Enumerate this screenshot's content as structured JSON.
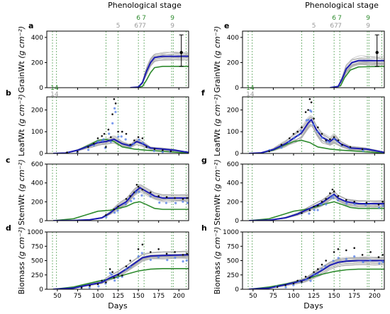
{
  "colors": {
    "sim_ensemble": "#a9a9a9",
    "sim_mean": "#1c1cb4",
    "obs_assim": "#4f7be8",
    "obs": "#111111",
    "baseline": "#2e8b2e",
    "stage_line": "#2e8b2e",
    "stage_line_grey": "#9a9a9a",
    "spine": "#000000"
  },
  "headers": {
    "left": "Phenological stage",
    "right": "Phenological stage"
  },
  "stage_markers": {
    "green_top": [
      {
        "label": "6",
        "x": 150
      },
      {
        "label": "7",
        "x": 157
      },
      {
        "label": "9",
        "x": 192
      }
    ],
    "grey_top": [
      {
        "label": "5",
        "x": 125
      },
      {
        "label": "67",
        "x": 150
      },
      {
        "label": "7",
        "x": 157
      },
      {
        "label": "9",
        "x": 192
      }
    ],
    "green_early": [
      {
        "label": "1",
        "x": 44
      },
      {
        "label": "4",
        "x": 49
      }
    ],
    "grey_early": [
      {
        "label": "1",
        "x": 44
      },
      {
        "label": "4",
        "x": 49
      }
    ],
    "vlines": [
      44,
      49,
      110,
      125,
      150,
      157,
      191,
      193,
      209
    ]
  },
  "chart_data": [
    {
      "panel": "a",
      "type": "line",
      "ylabel": "GrainWt",
      "yunit": "(g cm⁻²)",
      "xlim": [
        37,
        212
      ],
      "ylim": [
        0,
        450
      ],
      "yticks": [
        0,
        200,
        400
      ],
      "xticks": [],
      "xlabel": "",
      "mean": [
        [
          140,
          0
        ],
        [
          150,
          5
        ],
        [
          155,
          40
        ],
        [
          160,
          130
        ],
        [
          165,
          200
        ],
        [
          170,
          240
        ],
        [
          180,
          250
        ],
        [
          212,
          250
        ]
      ],
      "baseline": [
        [
          145,
          0
        ],
        [
          155,
          10
        ],
        [
          160,
          60
        ],
        [
          165,
          120
        ],
        [
          170,
          160
        ],
        [
          180,
          170
        ],
        [
          212,
          170
        ]
      ],
      "ensemble_spread": 35,
      "errorbar": {
        "x": 203,
        "y": 280,
        "lo": 170,
        "hi": 420
      },
      "obs": []
    },
    {
      "panel": "b",
      "type": "line",
      "ylabel": "LeafWt",
      "yunit": "(g cm⁻²)",
      "xlim": [
        37,
        212
      ],
      "ylim": [
        0,
        260
      ],
      "yticks": [
        0,
        100,
        200
      ],
      "xticks": [],
      "xlabel": "",
      "mean": [
        [
          45,
          0
        ],
        [
          60,
          2
        ],
        [
          75,
          15
        ],
        [
          90,
          35
        ],
        [
          100,
          50
        ],
        [
          110,
          55
        ],
        [
          120,
          65
        ],
        [
          130,
          45
        ],
        [
          140,
          35
        ],
        [
          148,
          55
        ],
        [
          155,
          45
        ],
        [
          165,
          25
        ],
        [
          180,
          20
        ],
        [
          195,
          15
        ],
        [
          212,
          5
        ]
      ],
      "baseline": [
        [
          45,
          0
        ],
        [
          60,
          2
        ],
        [
          75,
          15
        ],
        [
          90,
          40
        ],
        [
          100,
          60
        ],
        [
          110,
          65
        ],
        [
          120,
          55
        ],
        [
          130,
          30
        ],
        [
          145,
          20
        ],
        [
          160,
          15
        ],
        [
          180,
          10
        ],
        [
          200,
          5
        ],
        [
          212,
          2
        ]
      ],
      "ensemble_spread": 20,
      "obs": [
        [
          62,
          5
        ],
        [
          75,
          8
        ],
        [
          88,
          30
        ],
        [
          95,
          45
        ],
        [
          100,
          70
        ],
        [
          105,
          80
        ],
        [
          108,
          90
        ],
        [
          110,
          30
        ],
        [
          113,
          110
        ],
        [
          116,
          75
        ],
        [
          118,
          180
        ],
        [
          120,
          250
        ],
        [
          122,
          230
        ],
        [
          125,
          100
        ],
        [
          130,
          100
        ],
        [
          135,
          90
        ],
        [
          140,
          40
        ],
        [
          145,
          60
        ],
        [
          150,
          75
        ],
        [
          155,
          70
        ],
        [
          160,
          30
        ],
        [
          170,
          20
        ],
        [
          180,
          15
        ],
        [
          190,
          10
        ]
      ]
    },
    {
      "panel": "c",
      "type": "line",
      "ylabel": "StemWt",
      "yunit": "(g cm⁻²)",
      "xlim": [
        37,
        212
      ],
      "ylim": [
        0,
        600
      ],
      "yticks": [
        0,
        200,
        400,
        600
      ],
      "xticks": [],
      "xlabel": "",
      "mean": [
        [
          45,
          0
        ],
        [
          70,
          2
        ],
        [
          90,
          10
        ],
        [
          105,
          30
        ],
        [
          115,
          80
        ],
        [
          125,
          150
        ],
        [
          135,
          200
        ],
        [
          145,
          300
        ],
        [
          152,
          350
        ],
        [
          160,
          310
        ],
        [
          170,
          260
        ],
        [
          180,
          240
        ],
        [
          212,
          240
        ]
      ],
      "baseline": [
        [
          45,
          0
        ],
        [
          70,
          20
        ],
        [
          85,
          60
        ],
        [
          100,
          100
        ],
        [
          115,
          110
        ],
        [
          125,
          130
        ],
        [
          135,
          150
        ],
        [
          145,
          190
        ],
        [
          152,
          200
        ],
        [
          160,
          170
        ],
        [
          170,
          130
        ],
        [
          180,
          120
        ],
        [
          212,
          120
        ]
      ],
      "ensemble_spread": 40,
      "obs": [
        [
          110,
          60
        ],
        [
          120,
          120
        ],
        [
          125,
          150
        ],
        [
          135,
          230
        ],
        [
          140,
          260
        ],
        [
          145,
          300
        ],
        [
          148,
          380
        ],
        [
          150,
          360
        ],
        [
          155,
          330
        ],
        [
          165,
          300
        ],
        [
          175,
          260
        ],
        [
          185,
          250
        ],
        [
          195,
          240
        ],
        [
          205,
          230
        ],
        [
          210,
          240
        ]
      ]
    },
    {
      "panel": "d",
      "type": "line",
      "ylabel": "Biomass",
      "yunit": "(g cm⁻²)",
      "xlim": [
        37,
        212
      ],
      "ylim": [
        0,
        1000
      ],
      "yticks": [
        0,
        250,
        500,
        750,
        1000
      ],
      "xticks": [
        50,
        75,
        100,
        125,
        150,
        175,
        200
      ],
      "xlabel": "Days",
      "mean": [
        [
          45,
          0
        ],
        [
          70,
          20
        ],
        [
          90,
          80
        ],
        [
          105,
          120
        ],
        [
          115,
          200
        ],
        [
          125,
          260
        ],
        [
          135,
          350
        ],
        [
          145,
          450
        ],
        [
          155,
          550
        ],
        [
          165,
          580
        ],
        [
          180,
          590
        ],
        [
          212,
          600
        ]
      ],
      "baseline": [
        [
          45,
          0
        ],
        [
          70,
          40
        ],
        [
          85,
          90
        ],
        [
          100,
          140
        ],
        [
          115,
          180
        ],
        [
          125,
          220
        ],
        [
          135,
          260
        ],
        [
          150,
          320
        ],
        [
          165,
          350
        ],
        [
          180,
          360
        ],
        [
          212,
          360
        ]
      ],
      "ensemble_spread": 70,
      "obs": [
        [
          80,
          30
        ],
        [
          90,
          60
        ],
        [
          100,
          90
        ],
        [
          105,
          150
        ],
        [
          110,
          120
        ],
        [
          115,
          350
        ],
        [
          118,
          300
        ],
        [
          120,
          200
        ],
        [
          125,
          250
        ],
        [
          130,
          240
        ],
        [
          135,
          400
        ],
        [
          140,
          500
        ],
        [
          150,
          700
        ],
        [
          155,
          780
        ],
        [
          165,
          650
        ],
        [
          175,
          700
        ],
        [
          185,
          620
        ],
        [
          195,
          650
        ],
        [
          205,
          600
        ],
        [
          210,
          620
        ]
      ]
    },
    {
      "panel": "e",
      "type": "line",
      "ylabel": "GrainWt",
      "yunit": "(g cm⁻²)",
      "xlim": [
        37,
        212
      ],
      "ylim": [
        0,
        450
      ],
      "yticks": [
        0,
        200,
        400
      ],
      "xticks": [],
      "xlabel": "",
      "mean": [
        [
          145,
          0
        ],
        [
          155,
          10
        ],
        [
          160,
          70
        ],
        [
          165,
          150
        ],
        [
          172,
          200
        ],
        [
          180,
          215
        ],
        [
          212,
          215
        ]
      ],
      "baseline": [
        [
          148,
          0
        ],
        [
          158,
          15
        ],
        [
          163,
          80
        ],
        [
          170,
          140
        ],
        [
          180,
          165
        ],
        [
          212,
          170
        ]
      ],
      "ensemble_spread": 35,
      "errorbar": {
        "x": 203,
        "y": 280,
        "lo": 170,
        "hi": 420
      },
      "obs": []
    },
    {
      "panel": "f",
      "type": "line",
      "ylabel": "LeafWt",
      "yunit": "(g cm⁻²)",
      "xlim": [
        37,
        212
      ],
      "ylim": [
        0,
        260
      ],
      "yticks": [
        0,
        100,
        200
      ],
      "xticks": [],
      "xlabel": "",
      "mean": [
        [
          45,
          0
        ],
        [
          60,
          3
        ],
        [
          75,
          18
        ],
        [
          90,
          45
        ],
        [
          100,
          70
        ],
        [
          110,
          95
        ],
        [
          118,
          140
        ],
        [
          122,
          155
        ],
        [
          128,
          110
        ],
        [
          135,
          75
        ],
        [
          145,
          55
        ],
        [
          150,
          70
        ],
        [
          158,
          45
        ],
        [
          170,
          25
        ],
        [
          190,
          20
        ],
        [
          212,
          5
        ]
      ],
      "baseline": [
        [
          45,
          0
        ],
        [
          60,
          2
        ],
        [
          75,
          15
        ],
        [
          90,
          40
        ],
        [
          100,
          55
        ],
        [
          110,
          60
        ],
        [
          120,
          50
        ],
        [
          130,
          30
        ],
        [
          145,
          20
        ],
        [
          160,
          15
        ],
        [
          180,
          10
        ],
        [
          200,
          5
        ],
        [
          212,
          2
        ]
      ],
      "ensemble_spread": 25,
      "obs": [
        [
          70,
          10
        ],
        [
          85,
          40
        ],
        [
          95,
          70
        ],
        [
          100,
          90
        ],
        [
          105,
          100
        ],
        [
          110,
          120
        ],
        [
          115,
          190
        ],
        [
          118,
          200
        ],
        [
          120,
          250
        ],
        [
          122,
          235
        ],
        [
          125,
          160
        ],
        [
          130,
          120
        ],
        [
          135,
          90
        ],
        [
          140,
          60
        ],
        [
          145,
          65
        ],
        [
          150,
          75
        ],
        [
          155,
          60
        ],
        [
          160,
          40
        ],
        [
          170,
          30
        ],
        [
          185,
          20
        ]
      ]
    },
    {
      "panel": "g",
      "type": "line",
      "ylabel": "StemWt",
      "yunit": "(g cm⁻²)",
      "xlim": [
        37,
        212
      ],
      "ylim": [
        0,
        600
      ],
      "yticks": [
        0,
        200,
        400,
        600
      ],
      "xticks": [],
      "xlabel": "",
      "mean": [
        [
          45,
          0
        ],
        [
          70,
          5
        ],
        [
          90,
          30
        ],
        [
          105,
          70
        ],
        [
          115,
          110
        ],
        [
          125,
          150
        ],
        [
          135,
          190
        ],
        [
          145,
          250
        ],
        [
          150,
          280
        ],
        [
          155,
          240
        ],
        [
          165,
          200
        ],
        [
          180,
          180
        ],
        [
          212,
          180
        ]
      ],
      "baseline": [
        [
          45,
          0
        ],
        [
          70,
          20
        ],
        [
          85,
          60
        ],
        [
          100,
          100
        ],
        [
          115,
          120
        ],
        [
          125,
          140
        ],
        [
          140,
          180
        ],
        [
          150,
          200
        ],
        [
          160,
          170
        ],
        [
          170,
          140
        ],
        [
          180,
          130
        ],
        [
          212,
          130
        ]
      ],
      "ensemble_spread": 35,
      "obs": [
        [
          110,
          80
        ],
        [
          120,
          110
        ],
        [
          125,
          150
        ],
        [
          130,
          160
        ],
        [
          135,
          200
        ],
        [
          140,
          230
        ],
        [
          145,
          290
        ],
        [
          148,
          330
        ],
        [
          150,
          310
        ],
        [
          155,
          260
        ],
        [
          165,
          220
        ],
        [
          175,
          200
        ],
        [
          190,
          190
        ],
        [
          205,
          170
        ],
        [
          210,
          200
        ]
      ]
    },
    {
      "panel": "h",
      "type": "line",
      "ylabel": "Biomass",
      "yunit": "(g cm⁻²)",
      "xlim": [
        37,
        212
      ],
      "ylim": [
        0,
        1000
      ],
      "yticks": [
        0,
        250,
        500,
        750,
        1000
      ],
      "xticks": [
        50,
        75,
        100,
        125,
        150,
        175,
        200
      ],
      "xlabel": "Days",
      "mean": [
        [
          45,
          0
        ],
        [
          70,
          20
        ],
        [
          90,
          80
        ],
        [
          105,
          130
        ],
        [
          115,
          170
        ],
        [
          125,
          250
        ],
        [
          135,
          330
        ],
        [
          145,
          420
        ],
        [
          155,
          470
        ],
        [
          165,
          490
        ],
        [
          180,
          500
        ],
        [
          212,
          500
        ]
      ],
      "baseline": [
        [
          45,
          0
        ],
        [
          70,
          40
        ],
        [
          85,
          80
        ],
        [
          100,
          120
        ],
        [
          115,
          170
        ],
        [
          125,
          220
        ],
        [
          135,
          260
        ],
        [
          150,
          310
        ],
        [
          165,
          340
        ],
        [
          180,
          350
        ],
        [
          212,
          350
        ]
      ],
      "ensemble_spread": 80,
      "obs": [
        [
          80,
          40
        ],
        [
          90,
          70
        ],
        [
          100,
          100
        ],
        [
          105,
          150
        ],
        [
          110,
          130
        ],
        [
          115,
          220
        ],
        [
          120,
          200
        ],
        [
          125,
          300
        ],
        [
          130,
          350
        ],
        [
          135,
          430
        ],
        [
          140,
          500
        ],
        [
          150,
          650
        ],
        [
          155,
          700
        ],
        [
          165,
          680
        ],
        [
          175,
          720
        ],
        [
          185,
          600
        ],
        [
          195,
          650
        ],
        [
          205,
          560
        ],
        [
          210,
          600
        ]
      ]
    }
  ]
}
